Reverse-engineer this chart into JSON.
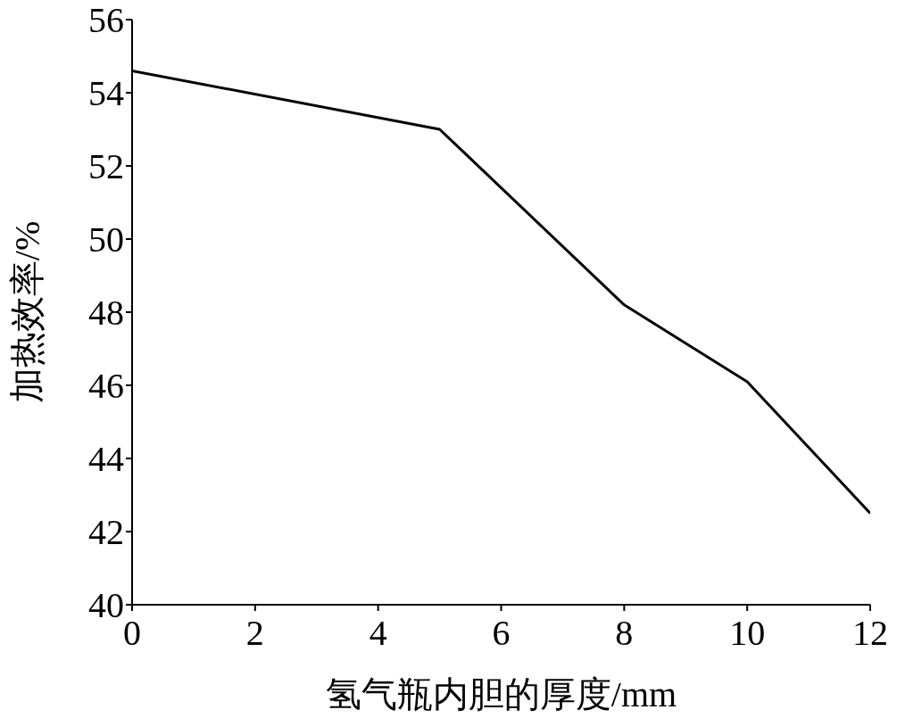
{
  "chart_data": {
    "type": "line",
    "xlabel": "氢气瓶内胆的厚度/mm",
    "ylabel": "加热效率/%",
    "x": [
      0,
      5,
      8,
      10,
      12
    ],
    "series": [
      {
        "color": "#000000",
        "values": [
          54.6,
          53.0,
          48.2,
          46.1,
          42.5
        ]
      }
    ],
    "xlim": [
      0,
      12
    ],
    "xticks": [
      0,
      2,
      4,
      6,
      8,
      10,
      12
    ],
    "ylim": [
      40,
      56
    ],
    "yticks": [
      40,
      42,
      44,
      46,
      48,
      50,
      52,
      54,
      56
    ],
    "grid": false,
    "legend": false,
    "marker": "none",
    "line_style": "solid"
  }
}
